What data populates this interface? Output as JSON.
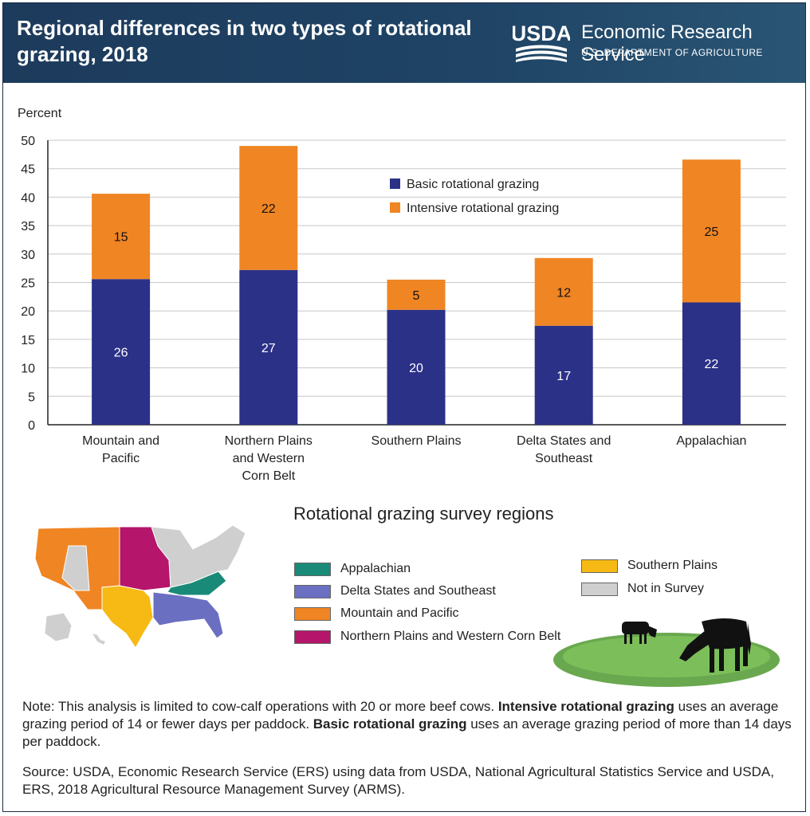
{
  "header": {
    "title": "Regional differences in two types of rotational grazing, 2018",
    "logo_text": "USDA",
    "agency": "Economic Research Service",
    "department": "U.S. DEPARTMENT OF AGRICULTURE"
  },
  "chart_data": {
    "type": "bar",
    "stacked": true,
    "ylabel": "Percent",
    "ylim": [
      0,
      50
    ],
    "yticks": [
      0,
      5,
      10,
      15,
      20,
      25,
      30,
      35,
      40,
      45,
      50
    ],
    "categories": [
      [
        "Mountain and",
        "Pacific"
      ],
      [
        "Northern Plains",
        "and Western",
        "Corn Belt"
      ],
      [
        "Southern Plains"
      ],
      [
        "Delta States and",
        "Southeast"
      ],
      [
        "Appalachian"
      ]
    ],
    "series": [
      {
        "name": "Basic rotational grazing",
        "color": "#2b3187",
        "values": [
          25.6,
          27.2,
          20.2,
          17.4,
          21.5
        ],
        "labels": [
          "26",
          "27",
          "20",
          "17",
          "22"
        ]
      },
      {
        "name": "Intensive rotational grazing",
        "color": "#f08523",
        "values": [
          15.0,
          21.8,
          5.3,
          11.9,
          25.1
        ],
        "labels": [
          "15",
          "22",
          "5",
          "12",
          "25"
        ]
      }
    ]
  },
  "map": {
    "title": "Rotational grazing survey regions",
    "legend": [
      {
        "label": "Appalachian",
        "color": "#1a8a78"
      },
      {
        "label": "Delta States and Southeast",
        "color": "#6a6fc1"
      },
      {
        "label": "Mountain and Pacific",
        "color": "#f08523"
      },
      {
        "label": "Northern Plains and Western Corn Belt",
        "color": "#b5156b"
      },
      {
        "label": "Southern Plains",
        "color": "#f7b914"
      },
      {
        "label": "Not in Survey",
        "color": "#cfcfcf"
      }
    ]
  },
  "note": {
    "p1": "Note: This analysis is limited to cow-calf operations with 20 or more beef cows. ",
    "b1": "Intensive rotational grazing",
    "p2": " uses an average grazing period of 14 or fewer days per paddock. ",
    "b2": "Basic rotational grazing",
    "p3": " uses an average grazing period of more than 14 days per paddock."
  },
  "source": "Source: USDA, Economic Research Service (ERS) using data from USDA, National Agricultural Statistics Service and USDA, ERS, 2018 Agricultural Resource Management Survey (ARMS)."
}
